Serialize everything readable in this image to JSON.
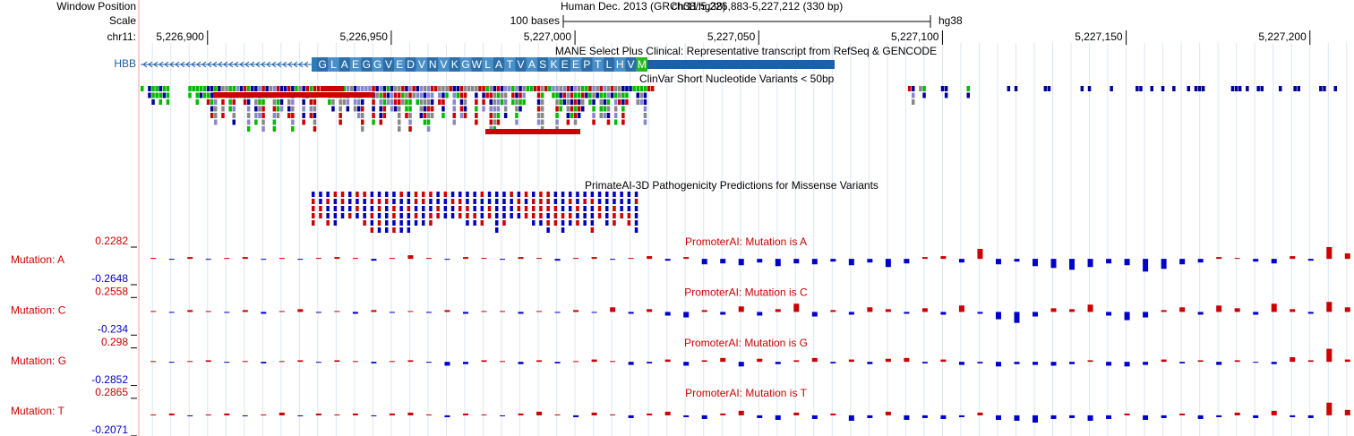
{
  "labels": {
    "window_position": "Window Position",
    "scale": "Scale",
    "chrom": "chr11:"
  },
  "header": {
    "title": "Human Dec. 2013 (GRCh38/hg38)",
    "position": "chr11:5,226,883-5,227,212 (330 bp)",
    "scale_label": "100 bases",
    "assembly": "hg38"
  },
  "ruler": {
    "xlim": [
      5226883,
      5227212
    ],
    "ticks": [
      {
        "value": 5226900,
        "label": "5,226,900"
      },
      {
        "value": 5226950,
        "label": "5,226,950"
      },
      {
        "value": 5227000,
        "label": "5,227,000"
      },
      {
        "value": 5227050,
        "label": "5,227,050"
      },
      {
        "value": 5227100,
        "label": "5,227,100"
      },
      {
        "value": 5227150,
        "label": "5,227,150"
      },
      {
        "value": 5227200,
        "label": "5,227,200"
      }
    ]
  },
  "gene": {
    "name": "HBB",
    "track_title": "MANE Select Plus Clinical: Representative transcript from RefSeq & GENCODE",
    "amino_acids": [
      "G",
      "L",
      "A",
      "E",
      "G",
      "G",
      "V",
      "E",
      "D",
      "V",
      "N",
      "V",
      "K",
      "G",
      "W",
      "L",
      "A",
      "T",
      "V",
      "A",
      "S",
      "K",
      "E",
      "E",
      "P",
      "T",
      "L",
      "H",
      "V",
      "M"
    ]
  },
  "clinvar": {
    "title": "ClinVar Short Nucleotide Variants < 50bp"
  },
  "primateai": {
    "title": "PrimateAI-3D Pathogenicity Predictions for Missense Variants"
  },
  "chart_data": [
    {
      "type": "bar",
      "label": "Mutation: A",
      "title": "PromoterAI: Mutation is A",
      "ylim": [
        -0.2648,
        0.2282
      ],
      "yticks": [
        0.2282,
        -0.2648
      ],
      "x": [
        5226885,
        5226890,
        5226895,
        5226900,
        5226905,
        5226910,
        5226915,
        5226920,
        5226925,
        5226930,
        5226935,
        5226940,
        5226945,
        5226950,
        5226955,
        5226960,
        5226965,
        5226970,
        5226975,
        5226980,
        5226985,
        5226990,
        5226995,
        5227000,
        5227005,
        5227010,
        5227015,
        5227020,
        5227025,
        5227030,
        5227035,
        5227040,
        5227045,
        5227050,
        5227055,
        5227060,
        5227065,
        5227070,
        5227075,
        5227080,
        5227085,
        5227090,
        5227095,
        5227100,
        5227105,
        5227110,
        5227115,
        5227120,
        5227125,
        5227130,
        5227135,
        5227140,
        5227145,
        5227150,
        5227155,
        5227160,
        5227165,
        5227170,
        5227175,
        5227180,
        5227185,
        5227190,
        5227195,
        5227200,
        5227205,
        5227210
      ],
      "values": [
        0.01,
        -0.01,
        0.02,
        -0.01,
        0.01,
        0.02,
        -0.01,
        0.01,
        -0.01,
        0.01,
        0.02,
        0.01,
        -0.02,
        0.01,
        0.04,
        0.01,
        -0.01,
        0.02,
        0.01,
        -0.01,
        0.02,
        0.01,
        -0.02,
        0.01,
        0.02,
        -0.01,
        0.01,
        0.03,
        -0.02,
        0.02,
        -0.06,
        -0.05,
        -0.07,
        -0.04,
        -0.08,
        -0.05,
        -0.06,
        -0.03,
        -0.07,
        -0.04,
        -0.09,
        -0.05,
        0.02,
        0.03,
        -0.04,
        0.11,
        -0.06,
        -0.03,
        -0.08,
        -0.1,
        -0.12,
        -0.09,
        -0.05,
        -0.07,
        -0.14,
        -0.11,
        -0.06,
        -0.04,
        0.02,
        0.01,
        -0.03,
        -0.05,
        0.03,
        -0.02,
        0.13,
        0.06
      ],
      "pos_color": "#cc0000",
      "neg_color": "#0000cc"
    },
    {
      "type": "bar",
      "label": "Mutation: C",
      "title": "PromoterAI: Mutation is C",
      "ylim": [
        -0.234,
        0.2558
      ],
      "yticks": [
        0.2558,
        -0.234
      ],
      "x": [
        5226885,
        5226890,
        5226895,
        5226900,
        5226905,
        5226910,
        5226915,
        5226920,
        5226925,
        5226930,
        5226935,
        5226940,
        5226945,
        5226950,
        5226955,
        5226960,
        5226965,
        5226970,
        5226975,
        5226980,
        5226985,
        5226990,
        5226995,
        5227000,
        5227005,
        5227010,
        5227015,
        5227020,
        5227025,
        5227030,
        5227035,
        5227040,
        5227045,
        5227050,
        5227055,
        5227060,
        5227065,
        5227070,
        5227075,
        5227080,
        5227085,
        5227090,
        5227095,
        5227100,
        5227105,
        5227110,
        5227115,
        5227120,
        5227125,
        5227130,
        5227135,
        5227140,
        5227145,
        5227150,
        5227155,
        5227160,
        5227165,
        5227170,
        5227175,
        5227180,
        5227185,
        5227190,
        5227195,
        5227200,
        5227205,
        5227210
      ],
      "values": [
        0.01,
        -0.01,
        0.02,
        0.01,
        -0.01,
        0.02,
        -0.02,
        0.01,
        0.03,
        -0.01,
        0.01,
        -0.02,
        0.02,
        -0.01,
        0.01,
        -0.01,
        0.02,
        -0.02,
        0.01,
        0.01,
        -0.02,
        0.01,
        -0.01,
        0.02,
        -0.01,
        0.05,
        -0.02,
        0.03,
        -0.04,
        -0.06,
        0.02,
        -0.03,
        0.06,
        -0.04,
        0.03,
        0.09,
        -0.05,
        0.02,
        -0.03,
        0.05,
        0.03,
        -0.02,
        0.04,
        -0.03,
        0.07,
        -0.02,
        -0.08,
        -0.12,
        -0.05,
        0.04,
        0.03,
        0.08,
        -0.04,
        -0.09,
        -0.06,
        0.02,
        0.05,
        -0.03,
        0.07,
        0.04,
        -0.03,
        0.09,
        0.03,
        -0.02,
        0.11,
        0.05
      ],
      "pos_color": "#cc0000",
      "neg_color": "#0000cc"
    },
    {
      "type": "bar",
      "label": "Mutation: G",
      "title": "PromoterAI: Mutation is G",
      "ylim": [
        -0.2852,
        0.298
      ],
      "yticks": [
        0.298,
        -0.2852
      ],
      "x": [
        5226885,
        5226890,
        5226895,
        5226900,
        5226905,
        5226910,
        5226915,
        5226920,
        5226925,
        5226930,
        5226935,
        5226940,
        5226945,
        5226950,
        5226955,
        5226960,
        5226965,
        5226970,
        5226975,
        5226980,
        5226985,
        5226990,
        5226995,
        5227000,
        5227005,
        5227010,
        5227015,
        5227020,
        5227025,
        5227030,
        5227035,
        5227040,
        5227045,
        5227050,
        5227055,
        5227060,
        5227065,
        5227070,
        5227075,
        5227080,
        5227085,
        5227090,
        5227095,
        5227100,
        5227105,
        5227110,
        5227115,
        5227120,
        5227125,
        5227130,
        5227135,
        5227140,
        5227145,
        5227150,
        5227155,
        5227160,
        5227165,
        5227170,
        5227175,
        5227180,
        5227185,
        5227190,
        5227195,
        5227200,
        5227205,
        5227210
      ],
      "values": [
        0.01,
        -0.01,
        0.01,
        0.02,
        -0.01,
        0.01,
        -0.02,
        0.01,
        0.02,
        -0.01,
        0.02,
        0.01,
        -0.02,
        0.01,
        0.02,
        -0.01,
        -0.05,
        -0.03,
        0.02,
        0.01,
        -0.03,
        0.02,
        -0.02,
        0.01,
        0.03,
        0.01,
        -0.04,
        -0.02,
        0.03,
        -0.05,
        0.02,
        0.05,
        -0.06,
        0.04,
        -0.03,
        0.02,
        0.05,
        -0.02,
        0.03,
        -0.03,
        0.04,
        0.05,
        -0.02,
        0.03,
        -0.04,
        -0.02,
        -0.06,
        -0.03,
        -0.04,
        -0.05,
        -0.03,
        0.02,
        -0.05,
        -0.06,
        -0.04,
        0.03,
        -0.02,
        0.02,
        -0.04,
        0.02,
        -0.01,
        -0.03,
        0.06,
        0.02,
        0.17,
        0.03
      ],
      "pos_color": "#cc0000",
      "neg_color": "#0000cc"
    },
    {
      "type": "bar",
      "label": "Mutation: T",
      "title": "PromoterAI: Mutation is T",
      "ylim": [
        -0.2071,
        0.2865
      ],
      "yticks": [
        0.2865,
        -0.2071
      ],
      "x": [
        5226885,
        5226890,
        5226895,
        5226900,
        5226905,
        5226910,
        5226915,
        5226920,
        5226925,
        5226930,
        5226935,
        5226940,
        5226945,
        5226950,
        5226955,
        5226960,
        5226965,
        5226970,
        5226975,
        5226980,
        5226985,
        5226990,
        5226995,
        5227000,
        5227005,
        5227010,
        5227015,
        5227020,
        5227025,
        5227030,
        5227035,
        5227040,
        5227045,
        5227050,
        5227055,
        5227060,
        5227065,
        5227070,
        5227075,
        5227080,
        5227085,
        5227090,
        5227095,
        5227100,
        5227105,
        5227110,
        5227115,
        5227120,
        5227125,
        5227130,
        5227135,
        5227140,
        5227145,
        5227150,
        5227155,
        5227160,
        5227165,
        5227170,
        5227175,
        5227180,
        5227185,
        5227190,
        5227195,
        5227200,
        5227205,
        5227210
      ],
      "values": [
        0.01,
        0.02,
        -0.01,
        0.01,
        0.02,
        -0.01,
        0.01,
        0.03,
        -0.01,
        0.02,
        0.01,
        0.02,
        -0.01,
        0.02,
        0.03,
        0.01,
        -0.02,
        0.02,
        0.01,
        -0.01,
        0.02,
        0.04,
        0.01,
        -0.02,
        0.03,
        0.01,
        -0.03,
        0.02,
        0.04,
        -0.02,
        -0.04,
        0.02,
        0.05,
        -0.03,
        -0.05,
        0.03,
        -0.04,
        0.02,
        -0.06,
        -0.03,
        0.04,
        -0.05,
        -0.03,
        -0.04,
        -0.02,
        0.03,
        -0.05,
        -0.06,
        -0.08,
        -0.04,
        -0.03,
        -0.06,
        -0.04,
        0.02,
        -0.05,
        -0.03,
        0.02,
        -0.04,
        -0.02,
        0.03,
        -0.03,
        0.05,
        -0.02,
        -0.03,
        0.14,
        0.06
      ],
      "pos_color": "#cc0000",
      "neg_color": "#0000cc"
    }
  ]
}
